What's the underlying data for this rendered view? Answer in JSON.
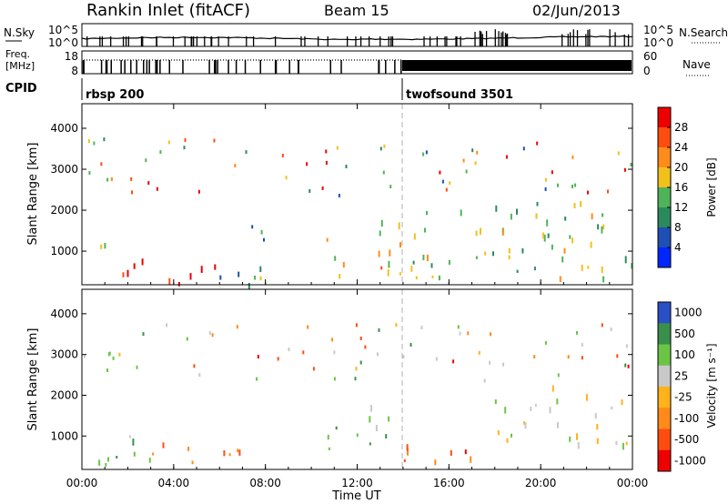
{
  "header": {
    "title": "Rankin Inlet (fitACF)",
    "beam": "Beam 15",
    "date": "02/Jun/2013"
  },
  "nsky_panel": {
    "left_label": "N.Sky",
    "left_ticks": [
      "10^5",
      "10^0"
    ],
    "right_label": "N.Search",
    "right_ticks": [
      "10^5",
      "10^0"
    ]
  },
  "freq_panel": {
    "left_label_line1": "Freq.",
    "left_label_line2": "[MHz]",
    "left_ticks": [
      "18",
      "8"
    ],
    "right_label": "Nave",
    "right_ticks": [
      "60",
      "0"
    ]
  },
  "cpid_panel": {
    "label": "CPID",
    "modes": [
      {
        "name": "rbsp",
        "id": "200",
        "start_hour": 0
      },
      {
        "name": "twofsound",
        "id": "3501",
        "start_hour": 14.1
      }
    ]
  },
  "chart_data": [
    {
      "type": "heatmap",
      "parameter": "power",
      "xlabel": "",
      "ylabel": "Slant Range [km]",
      "xlim": [
        0,
        24
      ],
      "ylim": [
        180,
        4600
      ],
      "x_ticks": [
        "00:00",
        "04:00",
        "08:00",
        "12:00",
        "16:00",
        "20:00",
        "00:00"
      ],
      "y_ticks": [
        "1000",
        "2000",
        "3000",
        "4000"
      ],
      "colorbar": {
        "label": "Power [dB]",
        "ticks": [
          "28",
          "24",
          "20",
          "16",
          "12",
          "8",
          "4"
        ],
        "range": [
          0,
          30
        ],
        "colors": [
          "#0026ff",
          "#1f4fb5",
          "#2b8a5c",
          "#4fb35a",
          "#f2c01a",
          "#ff8c1a",
          "#ff4d10",
          "#ee0000"
        ]
      },
      "echo_regions": [
        {
          "time": [
            0.1,
            1.0
          ],
          "range": [
            400,
            1400
          ],
          "value": 12
        },
        {
          "time": [
            1.0,
            3.2
          ],
          "range": [
            200,
            900
          ],
          "value": 26
        },
        {
          "time": [
            3.2,
            6.0
          ],
          "range": [
            200,
            800
          ],
          "value": 28
        },
        {
          "time": [
            6.0,
            8.0
          ],
          "range": [
            200,
            1800
          ],
          "value": 10
        },
        {
          "time": [
            10.5,
            14.0
          ],
          "range": [
            400,
            1900
          ],
          "value": 18
        },
        {
          "time": [
            14.0,
            24.0
          ],
          "range": [
            300,
            2300
          ],
          "value": 14
        }
      ]
    },
    {
      "type": "heatmap",
      "parameter": "velocity",
      "xlabel": "Time UT",
      "ylabel": "Slant Range [km]",
      "xlim": [
        0,
        24
      ],
      "ylim": [
        180,
        4600
      ],
      "x_ticks": [
        "00:00",
        "04:00",
        "08:00",
        "12:00",
        "16:00",
        "20:00",
        "00:00"
      ],
      "y_ticks": [
        "1000",
        "2000",
        "3000",
        "4000"
      ],
      "colorbar": {
        "label": "Velocity [m s⁻¹]",
        "ticks": [
          "1000",
          "500",
          "100",
          "25",
          "-25",
          "-100",
          "-500",
          "-1000"
        ],
        "colors": [
          "#2a4fc6",
          "#3a8f4a",
          "#6cc447",
          "#c9c9c9",
          "#ffb21a",
          "#ff8a1a",
          "#ff4d10",
          "#ee0000"
        ]
      },
      "echo_regions": [
        {
          "time": [
            0.5,
            3.0
          ],
          "range": [
            300,
            1400
          ],
          "value": 100
        },
        {
          "time": [
            3.0,
            7.0
          ],
          "range": [
            200,
            900
          ],
          "value": -100
        },
        {
          "time": [
            10.5,
            13.5
          ],
          "range": [
            600,
            1800
          ],
          "value": 100
        },
        {
          "time": [
            14.0,
            18.0
          ],
          "range": [
            300,
            900
          ],
          "value": -500
        },
        {
          "time": [
            18.0,
            24.0
          ],
          "range": [
            800,
            2300
          ],
          "value": 25
        }
      ]
    }
  ]
}
